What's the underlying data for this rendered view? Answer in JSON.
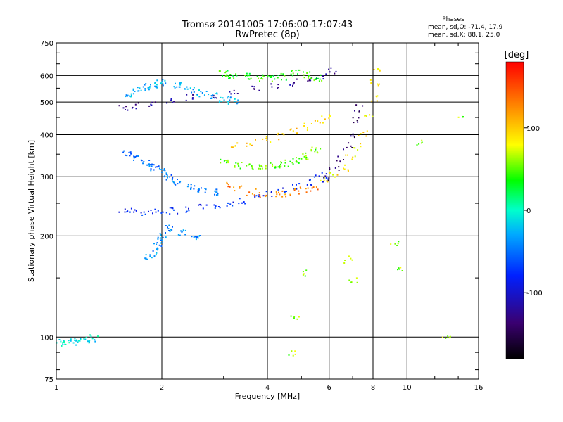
{
  "header": {
    "title_line1": "Tromsø 20141005 17:06:00-17:07:43",
    "title_line2": "RwPretec (8p)",
    "phases_title": "Phases",
    "phases_o": "mean, sd,O:  -71.4, 17.9",
    "phases_x": "mean, sd,X:   88.1, 25.0"
  },
  "chart_data": {
    "type": "scatter",
    "title": "Tromsø 20141005 17:06:00-17:07:43",
    "subtitle": "RwPretec (8p)",
    "xlabel": "Frequency [MHz]",
    "ylabel": "Stationary phase Virtual Height [km]",
    "x_scale": "log2",
    "y_scale": "log",
    "xlim": [
      1,
      16
    ],
    "ylim": [
      75,
      750
    ],
    "x_ticks": [
      1,
      2,
      4,
      6,
      8,
      10,
      16
    ],
    "y_ticks": [
      75,
      100,
      200,
      300,
      400,
      500,
      600,
      750
    ],
    "grid": true,
    "colorbar": {
      "label": "[deg]",
      "range": [
        -180,
        180
      ],
      "ticks": [
        100,
        0,
        -100
      ]
    },
    "series": [
      {
        "x": [
          1.0,
          1.03,
          1.06,
          1.1,
          1.14,
          1.17,
          1.21,
          1.25,
          1.28
        ],
        "y": [
          97,
          96,
          96,
          97,
          98,
          97,
          98,
          99,
          99
        ],
        "phase": -10
      },
      {
        "x": [
          1.55,
          1.65,
          1.78,
          1.92,
          2.05,
          2.2,
          2.4,
          2.6,
          2.85,
          3.1,
          3.4,
          3.7,
          4.0,
          4.4,
          4.8,
          5.2,
          5.6,
          5.9
        ],
        "y": [
          240,
          238,
          236,
          236,
          237,
          238,
          240,
          242,
          246,
          250,
          255,
          260,
          265,
          272,
          280,
          288,
          296,
          302
        ],
        "phase": -80
      },
      {
        "x": [
          1.55,
          1.7,
          1.9,
          2.1,
          2.4,
          2.8,
          3.2,
          3.7,
          4.2,
          4.7,
          5.2,
          5.7,
          6.1
        ],
        "y": [
          478,
          488,
          498,
          506,
          514,
          522,
          532,
          545,
          558,
          572,
          585,
          600,
          618
        ],
        "phase": -120
      },
      {
        "x": [
          3.1,
          3.3,
          3.6,
          3.9,
          4.2,
          4.5,
          4.8,
          5.1,
          5.4
        ],
        "y": [
          285,
          276,
          270,
          266,
          265,
          266,
          269,
          273,
          278
        ],
        "phase": 130
      },
      {
        "x": [
          3.2,
          3.6,
          4.0,
          4.4,
          4.8,
          5.2,
          5.6,
          5.9
        ],
        "y": [
          372,
          378,
          386,
          396,
          408,
          422,
          438,
          455
        ],
        "phase": 100
      },
      {
        "x": [
          5.8,
          6.2,
          6.6,
          6.9,
          7.2,
          7.5,
          7.8,
          8.0,
          8.1,
          8.15
        ],
        "y": [
          292,
          302,
          318,
          340,
          368,
          405,
          450,
          510,
          570,
          630
        ],
        "phase": 90
      },
      {
        "x": [
          5.9,
          6.2,
          6.5,
          6.8,
          7.0,
          7.2,
          7.3
        ],
        "y": [
          296,
          315,
          340,
          370,
          400,
          440,
          480
        ],
        "phase": -140
      },
      {
        "x": [
          1.6,
          1.7,
          1.8,
          1.9,
          2.0,
          2.2,
          2.4,
          2.6,
          2.8,
          3.0,
          3.2
        ],
        "y": [
          520,
          540,
          555,
          565,
          570,
          560,
          545,
          530,
          520,
          510,
          505
        ],
        "phase": -30
      },
      {
        "x": [
          1.6,
          1.7,
          1.8,
          1.9,
          2.0,
          2.1,
          2.2,
          2.4,
          2.6,
          2.8
        ],
        "y": [
          350,
          340,
          330,
          320,
          310,
          300,
          290,
          280,
          275,
          270
        ],
        "phase": -50
      },
      {
        "x": [
          1.85,
          1.9,
          1.95,
          2.0,
          2.1,
          2.3,
          2.5
        ],
        "y": [
          172,
          180,
          190,
          200,
          210,
          205,
          200
        ],
        "phase": -40
      },
      {
        "x": [
          3.0,
          3.2,
          3.5,
          3.8,
          4.1,
          4.4,
          4.8,
          5.2,
          5.6
        ],
        "y": [
          610,
          600,
          595,
          590,
          585,
          595,
          610,
          600,
          590
        ],
        "phase": 40
      },
      {
        "x": [
          3.0,
          3.3,
          3.6,
          3.9,
          4.2,
          4.5,
          4.8,
          5.1,
          5.5
        ],
        "y": [
          330,
          325,
          320,
          318,
          322,
          328,
          335,
          345,
          360
        ],
        "phase": 50
      },
      {
        "x": [
          4.7,
          4.8,
          5.0,
          7.0,
          6.8,
          9.2,
          9.6,
          11.0,
          14.4,
          13.0
        ],
        "y": [
          90,
          115,
          155,
          148,
          170,
          188,
          160,
          380,
          450,
          100
        ],
        "phase": 60
      }
    ]
  }
}
